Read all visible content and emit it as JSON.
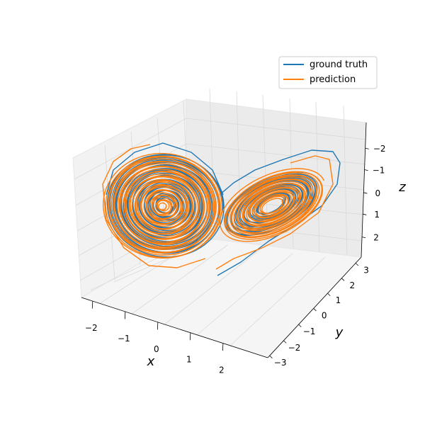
{
  "chart_data": {
    "type": "line",
    "projection": "3d",
    "title": "",
    "xlabel": "x",
    "ylabel": "y",
    "zlabel": "z",
    "xlim": [
      -2.5,
      2.5
    ],
    "ylim": [
      -3,
      3.5
    ],
    "zlim": [
      -2.8,
      2.8
    ],
    "x_ticks": [
      "−2",
      "−1",
      "0",
      "1",
      "2"
    ],
    "y_ticks": [
      "−3",
      "−2",
      "−1",
      "0",
      "1",
      "2",
      "3"
    ],
    "z_ticks": [
      "−2",
      "−1",
      "0",
      "1",
      "2"
    ],
    "grid": true,
    "legend_position": "top-right",
    "series": [
      {
        "name": "ground truth",
        "color": "#1f77b4"
      },
      {
        "name": "prediction",
        "color": "#ff7f0e"
      }
    ]
  }
}
